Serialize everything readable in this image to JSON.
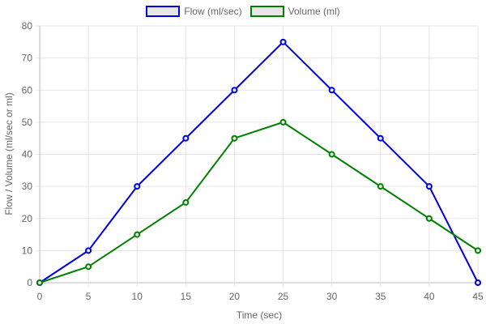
{
  "chart_data": {
    "type": "line",
    "xlabel": "Time (sec)",
    "ylabel": "Flow / Volume (ml/sec or ml)",
    "x": [
      0,
      5,
      10,
      15,
      20,
      25,
      30,
      35,
      40,
      45
    ],
    "xticks": [
      "0",
      "5",
      "10",
      "15",
      "20",
      "25",
      "30",
      "35",
      "40",
      "45"
    ],
    "yticks": [
      "0",
      "10",
      "20",
      "30",
      "40",
      "50",
      "60",
      "70",
      "80"
    ],
    "ylim": [
      0,
      80
    ],
    "grid": true,
    "legend_position": "top-center",
    "series": [
      {
        "name": "Flow (ml/sec)",
        "color": "#0000dd",
        "values": [
          0,
          10,
          30,
          45,
          60,
          75,
          60,
          45,
          30,
          0
        ]
      },
      {
        "name": "Volume (ml)",
        "color": "#008000",
        "values": [
          0,
          5,
          15,
          25,
          45,
          50,
          40,
          30,
          20,
          10
        ]
      }
    ]
  }
}
